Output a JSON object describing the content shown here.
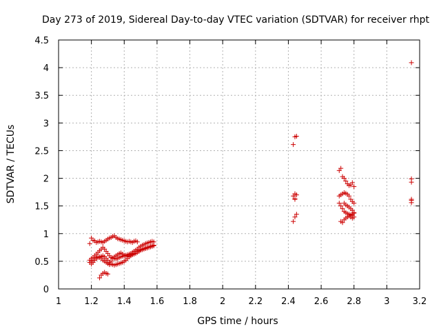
{
  "chart_data": {
    "type": "scatter",
    "title": "Day 273 of 2019, Sidereal Day-to-day VTEC variation (SDTVAR) for receiver rhpt",
    "xlabel": "GPS time / hours",
    "ylabel": "SDTVAR / TECUs",
    "xlim": [
      1,
      3.2
    ],
    "ylim": [
      0,
      4.5
    ],
    "xticks": [
      "1",
      "1.2",
      "1.4",
      "1.6",
      "1.8",
      "2",
      "2.2",
      "2.4",
      "2.6",
      "2.8",
      "3",
      "3.2"
    ],
    "yticks": [
      "0",
      "0.5",
      "1",
      "1.5",
      "2",
      "2.5",
      "3",
      "3.5",
      "4",
      "4.5"
    ],
    "grid": true,
    "marker": "+",
    "marker_color": "#cc0000",
    "series": [
      {
        "name": "SDTVAR",
        "x": [
          1.19,
          1.2,
          1.21,
          1.22,
          1.23,
          1.24,
          1.25,
          1.26,
          1.27,
          1.28,
          1.29,
          1.3,
          1.31,
          1.32,
          1.33,
          1.34,
          1.35,
          1.36,
          1.37,
          1.38,
          1.39,
          1.4,
          1.41,
          1.42,
          1.43,
          1.44,
          1.45,
          1.46,
          1.47,
          1.48,
          1.19,
          1.2,
          1.21,
          1.22,
          1.23,
          1.24,
          1.25,
          1.26,
          1.27,
          1.28,
          1.29,
          1.3,
          1.31,
          1.32,
          1.33,
          1.34,
          1.35,
          1.36,
          1.37,
          1.38,
          1.39,
          1.4,
          1.41,
          1.42,
          1.43,
          1.44,
          1.45,
          1.46,
          1.47,
          1.48,
          1.49,
          1.5,
          1.51,
          1.52,
          1.53,
          1.54,
          1.55,
          1.56,
          1.57,
          1.58,
          1.19,
          1.2,
          1.21,
          1.22,
          1.23,
          1.24,
          1.25,
          1.26,
          1.27,
          1.28,
          1.29,
          1.3,
          1.31,
          1.32,
          1.33,
          1.34,
          1.35,
          1.36,
          1.37,
          1.38,
          1.39,
          1.4,
          1.41,
          1.42,
          1.43,
          1.44,
          1.45,
          1.46,
          1.47,
          1.48,
          1.49,
          1.5,
          1.51,
          1.52,
          1.53,
          1.54,
          1.55,
          1.56,
          1.57,
          1.58,
          1.2,
          1.21,
          1.22,
          1.23,
          1.24,
          1.25,
          1.26,
          1.27,
          1.28,
          1.29,
          1.3,
          1.31,
          1.25,
          1.26,
          1.27,
          1.28,
          1.29,
          1.3,
          1.31,
          1.32,
          1.33,
          1.34,
          1.35,
          1.36,
          1.37,
          1.38,
          1.39,
          1.4,
          1.41,
          1.42,
          1.43,
          1.44,
          1.45,
          1.46,
          1.47,
          1.48,
          1.49,
          1.5,
          1.51,
          1.52,
          1.53,
          1.54,
          1.55,
          1.56,
          1.57,
          1.58,
          2.43,
          2.44,
          2.45,
          2.44,
          2.43,
          2.44,
          2.45,
          2.44,
          2.43,
          2.44,
          2.45,
          2.71,
          2.72,
          2.73,
          2.74,
          2.75,
          2.76,
          2.77,
          2.78,
          2.79,
          2.8,
          2.71,
          2.72,
          2.73,
          2.74,
          2.75,
          2.76,
          2.77,
          2.78,
          2.79,
          2.8,
          2.71,
          2.72,
          2.73,
          2.74,
          2.75,
          2.76,
          2.77,
          2.78,
          2.79,
          2.8,
          2.72,
          2.73,
          2.74,
          2.75,
          2.76,
          2.77,
          2.78,
          2.79,
          2.8,
          2.74,
          2.75,
          2.76,
          2.77,
          2.78,
          2.79,
          2.8,
          2.78,
          2.79,
          3.15,
          3.15,
          3.15,
          3.15,
          3.15,
          3.15
        ],
        "y": [
          0.82,
          0.92,
          0.88,
          0.87,
          0.84,
          0.85,
          0.86,
          0.85,
          0.84,
          0.86,
          0.88,
          0.9,
          0.92,
          0.93,
          0.95,
          0.96,
          0.93,
          0.91,
          0.9,
          0.89,
          0.88,
          0.87,
          0.86,
          0.85,
          0.86,
          0.85,
          0.84,
          0.86,
          0.87,
          0.85,
          0.52,
          0.55,
          0.57,
          0.6,
          0.63,
          0.66,
          0.69,
          0.72,
          0.75,
          0.72,
          0.68,
          0.64,
          0.6,
          0.57,
          0.56,
          0.55,
          0.54,
          0.55,
          0.57,
          0.58,
          0.59,
          0.6,
          0.61,
          0.62,
          0.63,
          0.64,
          0.66,
          0.68,
          0.7,
          0.72,
          0.75,
          0.77,
          0.79,
          0.8,
          0.82,
          0.83,
          0.84,
          0.85,
          0.86,
          0.85,
          0.48,
          0.45,
          0.48,
          0.52,
          0.55,
          0.57,
          0.58,
          0.59,
          0.6,
          0.58,
          0.55,
          0.52,
          0.48,
          0.45,
          0.44,
          0.43,
          0.44,
          0.45,
          0.46,
          0.47,
          0.48,
          0.5,
          0.52,
          0.55,
          0.58,
          0.6,
          0.62,
          0.64,
          0.66,
          0.68,
          0.69,
          0.7,
          0.71,
          0.72,
          0.73,
          0.74,
          0.75,
          0.76,
          0.77,
          0.78,
          0.5,
          0.52,
          0.55,
          0.57,
          0.58,
          0.57,
          0.55,
          0.52,
          0.5,
          0.48,
          0.46,
          0.44,
          0.2,
          0.25,
          0.28,
          0.3,
          0.28,
          0.27,
          0.45,
          0.5,
          0.55,
          0.58,
          0.6,
          0.62,
          0.64,
          0.65,
          0.63,
          0.61,
          0.6,
          0.59,
          0.6,
          0.61,
          0.62,
          0.63,
          0.64,
          0.66,
          0.68,
          0.7,
          0.72,
          0.73,
          0.74,
          0.75,
          0.76,
          0.77,
          0.78,
          0.79,
          2.61,
          2.75,
          2.76,
          1.72,
          1.68,
          1.63,
          1.7,
          1.62,
          1.22,
          1.3,
          1.35,
          2.14,
          2.18,
          2.03,
          2.0,
          1.95,
          1.9,
          1.87,
          1.88,
          1.92,
          1.85,
          1.68,
          1.7,
          1.72,
          1.74,
          1.73,
          1.71,
          1.68,
          1.62,
          1.58,
          1.55,
          1.55,
          1.5,
          1.45,
          1.4,
          1.38,
          1.36,
          1.35,
          1.34,
          1.33,
          1.3,
          1.22,
          1.2,
          1.25,
          1.28,
          1.3,
          1.32,
          1.33,
          1.35,
          1.37,
          1.55,
          1.52,
          1.5,
          1.48,
          1.45,
          1.42,
          1.38,
          1.3,
          1.28,
          4.09,
          1.99,
          1.93,
          1.62,
          1.56,
          1.6
        ]
      }
    ]
  }
}
